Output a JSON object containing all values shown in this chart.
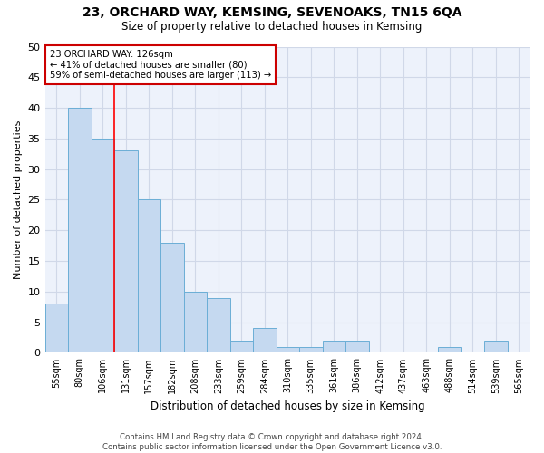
{
  "title": "23, ORCHARD WAY, KEMSING, SEVENOAKS, TN15 6QA",
  "subtitle": "Size of property relative to detached houses in Kemsing",
  "xlabel": "Distribution of detached houses by size in Kemsing",
  "ylabel": "Number of detached properties",
  "bar_color": "#c5d9f0",
  "bar_edge_color": "#6baed6",
  "bins": [
    "55sqm",
    "80sqm",
    "106sqm",
    "131sqm",
    "157sqm",
    "182sqm",
    "208sqm",
    "233sqm",
    "259sqm",
    "284sqm",
    "310sqm",
    "335sqm",
    "361sqm",
    "386sqm",
    "412sqm",
    "437sqm",
    "463sqm",
    "488sqm",
    "514sqm",
    "539sqm",
    "565sqm"
  ],
  "values": [
    8,
    40,
    35,
    33,
    25,
    18,
    10,
    9,
    2,
    4,
    1,
    1,
    2,
    2,
    0,
    0,
    0,
    1,
    0,
    2,
    0
  ],
  "ylim": [
    0,
    50
  ],
  "yticks": [
    0,
    5,
    10,
    15,
    20,
    25,
    30,
    35,
    40,
    45,
    50
  ],
  "annotation_text": "23 ORCHARD WAY: 126sqm\n← 41% of detached houses are smaller (80)\n59% of semi-detached houses are larger (113) →",
  "vline_bin_index": 3,
  "annotation_box_facecolor": "#ffffff",
  "annotation_box_edgecolor": "#cc0000",
  "grid_color": "#d0d8e8",
  "background_color": "#edf2fb",
  "footer": "Contains HM Land Registry data © Crown copyright and database right 2024.\nContains public sector information licensed under the Open Government Licence v3.0."
}
